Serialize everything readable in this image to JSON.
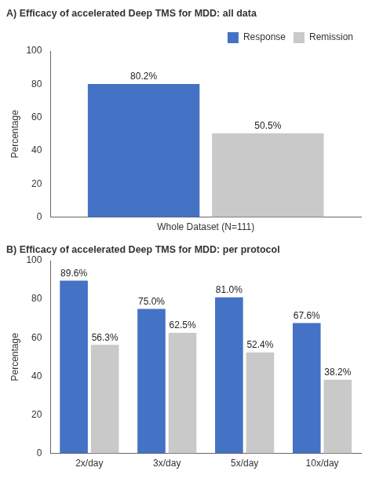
{
  "chart_data": [
    {
      "type": "bar",
      "title": "A) Efficacy of accelerated Deep TMS for MDD: all data",
      "y_label": "Percentage",
      "categories": [
        "Whole Dataset (N=111)"
      ],
      "series": [
        {
          "name": "Response",
          "color": "#4472C4",
          "values": [
            80.2
          ],
          "value_labels": [
            "80.2%"
          ]
        },
        {
          "name": "Remission",
          "color": "#C9C9C9",
          "values": [
            50.5
          ],
          "value_labels": [
            "50.5%"
          ]
        }
      ],
      "ylim": [
        0,
        100
      ],
      "yticks": [
        0,
        20,
        40,
        60,
        80,
        100
      ],
      "grid": false,
      "legend": "upper right",
      "data_labels": true
    },
    {
      "type": "bar",
      "title": "B) Efficacy of accelerated Deep TMS for MDD: per protocol",
      "y_label": "Percentage",
      "categories": [
        "2x/day",
        "3x/day",
        "5x/day",
        "10x/day"
      ],
      "series": [
        {
          "name": "Response",
          "color": "#4472C4",
          "values": [
            89.6,
            75.0,
            81.0,
            67.6
          ],
          "value_labels": [
            "89.6%",
            "75.0%",
            "81.0%",
            "67.6%"
          ]
        },
        {
          "name": "Remission",
          "color": "#C9C9C9",
          "values": [
            56.3,
            62.5,
            52.4,
            38.2
          ],
          "value_labels": [
            "56.3%",
            "62.5%",
            "52.4%",
            "38.2%"
          ]
        }
      ],
      "ylim": [
        0,
        100
      ],
      "yticks": [
        0,
        20,
        40,
        60,
        80,
        100
      ],
      "grid": false,
      "legend": false,
      "data_labels": true
    }
  ]
}
